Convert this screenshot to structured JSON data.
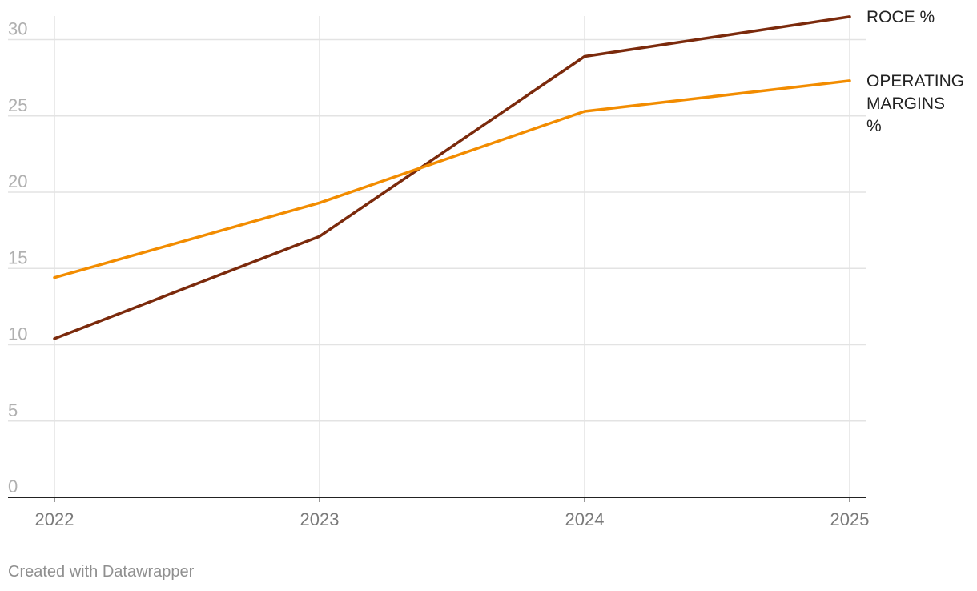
{
  "chart_data": {
    "type": "line",
    "x": [
      "2022",
      "2023",
      "2024",
      "2025"
    ],
    "series": [
      {
        "name": "ROCE %",
        "values": [
          10.4,
          17.1,
          28.9,
          31.5
        ],
        "color": "#7b2a0c"
      },
      {
        "name": "OPERATING MARGINS %",
        "values": [
          14.4,
          19.3,
          25.3,
          27.3
        ],
        "color": "#f28c00"
      }
    ],
    "yticks": [
      "0",
      "5",
      "10",
      "15",
      "20",
      "25",
      "30"
    ],
    "ylim": [
      0,
      31.5
    ],
    "grid": true,
    "legend": "direct labels at line ends"
  },
  "footer": {
    "credit": "Created with Datawrapper"
  }
}
